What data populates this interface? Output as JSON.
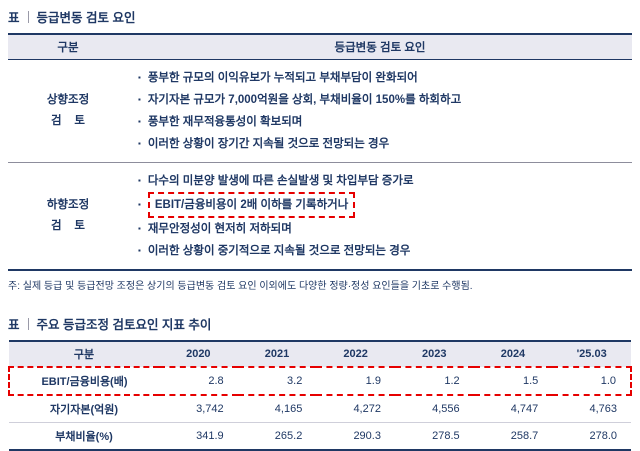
{
  "colors": {
    "navy": "#1F3864",
    "header_bg": "#E9E9F1",
    "highlight_red": "#E60000"
  },
  "section1": {
    "title_prefix": "표",
    "title": "등급변동 검토 요인",
    "table": {
      "col1_header": "구분",
      "col2_header": "등급변동 검토 요인",
      "rows": [
        {
          "label1": "상향조정",
          "label2": "검    토",
          "items": [
            "풍부한 규모의 이익유보가 누적되고 부채부담이 완화되어",
            "자기자본 규모가 7,000억원을 상회, 부채비율이 150%를 하회하고",
            "풍부한 재무적융통성이 확보되며",
            "이러한 상황이 장기간 지속될 것으로 전망되는 경우"
          ]
        },
        {
          "label1": "하향조정",
          "label2": "검    토",
          "items": [
            "다수의 미분양 발생에 따른 손실발생 및 차입부담 증가로",
            "EBIT/금융비용이 2배 이하를 기록하거나",
            "재무안정성이 현저히 저하되며",
            "이러한 상황이 중기적으로 지속될 것으로 전망되는 경우"
          ]
        }
      ]
    },
    "note": "주: 실제 등급 및 등급전망 조정은 상기의 등급변동 검토 요인 이외에도 다양한 정량·정성 요인들을 기초로 수행됨."
  },
  "section2": {
    "title_prefix": "표",
    "title": "주요 등급조정 검토요인 지표 추이",
    "table": {
      "columns": [
        "구분",
        "2020",
        "2021",
        "2022",
        "2023",
        "2024",
        "'25.03"
      ],
      "rows": [
        {
          "label": "EBIT/금융비용(배)",
          "highlighted": true,
          "values": [
            "2.8",
            "3.2",
            "1.9",
            "1.2",
            "1.5",
            "1.0"
          ]
        },
        {
          "label": "자기자본(억원)",
          "highlighted": false,
          "values": [
            "3,742",
            "4,165",
            "4,272",
            "4,556",
            "4,747",
            "4,763"
          ]
        },
        {
          "label": "부채비율(%)",
          "highlighted": false,
          "values": [
            "341.9",
            "265.2",
            "290.3",
            "278.5",
            "258.7",
            "278.0"
          ]
        }
      ]
    }
  }
}
